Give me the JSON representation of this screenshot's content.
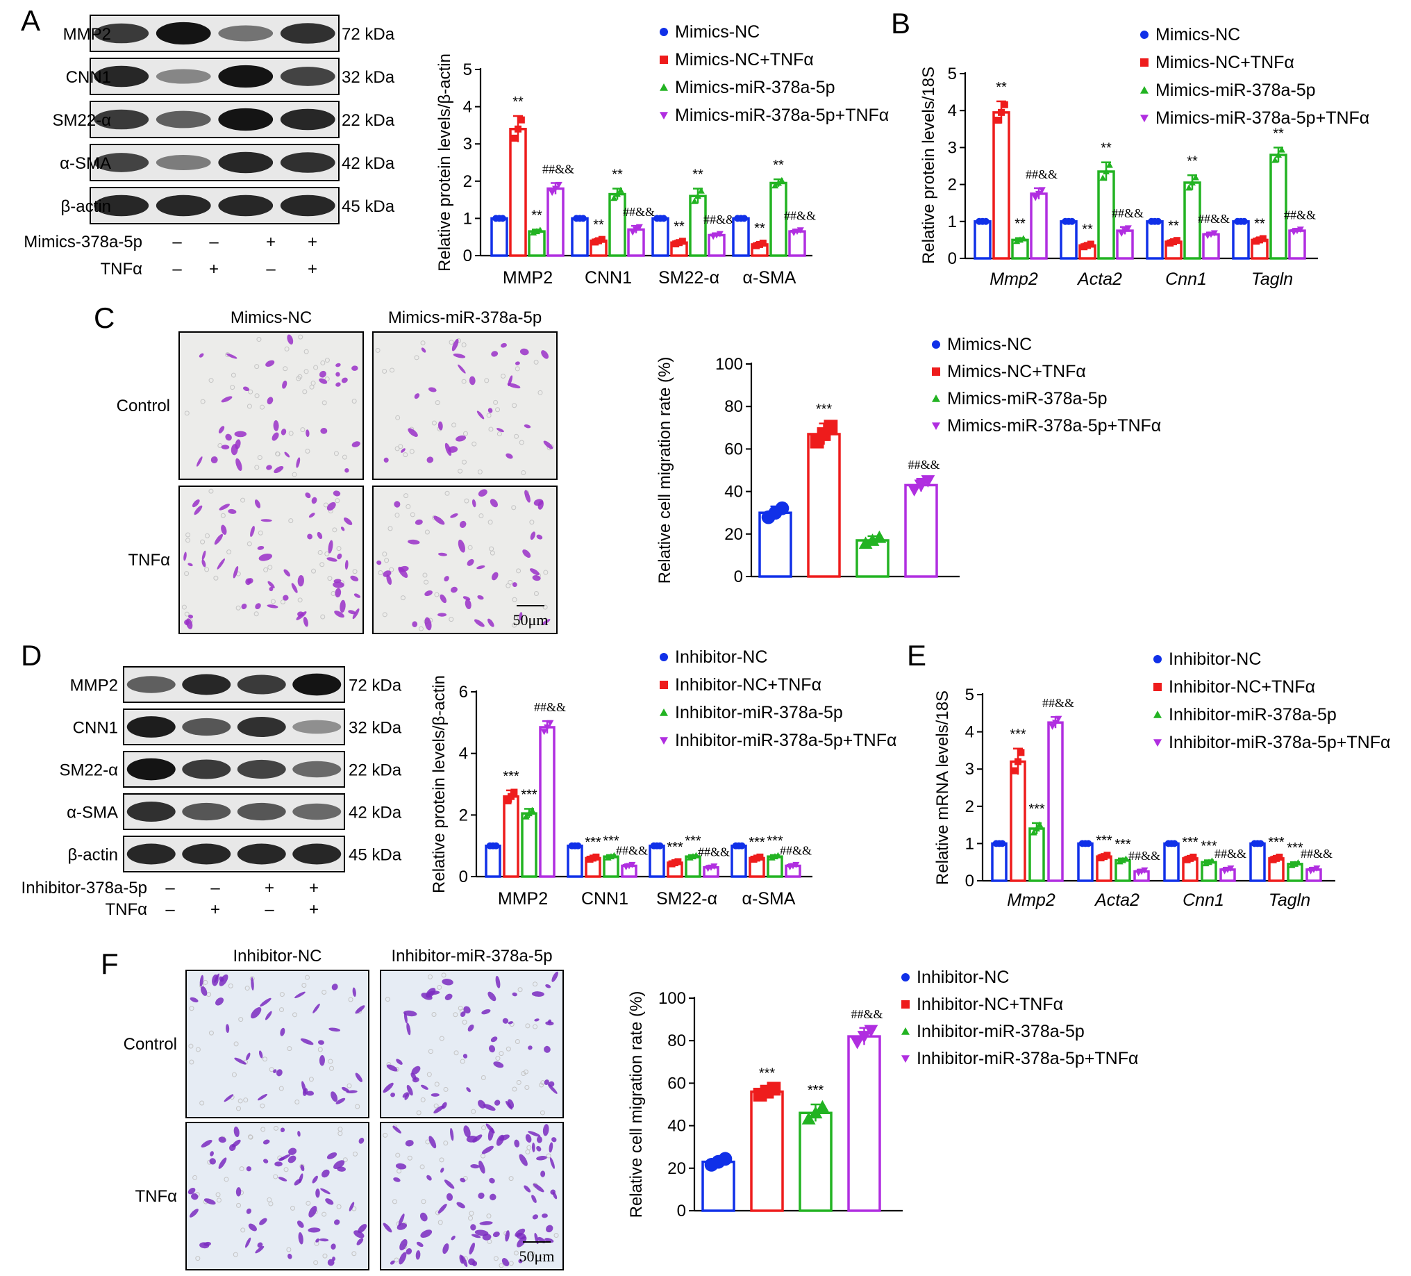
{
  "panels": {
    "A": {
      "letter": "A"
    },
    "B": {
      "letter": "B"
    },
    "C": {
      "letter": "C"
    },
    "D": {
      "letter": "D"
    },
    "E": {
      "letter": "E"
    },
    "F": {
      "letter": "F"
    }
  },
  "colors": {
    "blue": "#1030e8",
    "red": "#ee1c1c",
    "green": "#22b322",
    "purple": "#b02ee0"
  },
  "blots": [
    {
      "id": "A",
      "rows": [
        {
          "protein": "MMP2",
          "kda": "72 kDa",
          "intensities": [
            0.75,
            0.95,
            0.45,
            0.8
          ]
        },
        {
          "protein": "CNN1",
          "kda": "32 kDa",
          "intensities": [
            0.85,
            0.35,
            0.95,
            0.7
          ]
        },
        {
          "protein": "SM22-α",
          "kda": "22 kDa",
          "intensities": [
            0.75,
            0.55,
            0.95,
            0.85
          ]
        },
        {
          "protein": "α-SMA",
          "kda": "42 kDa",
          "intensities": [
            0.7,
            0.4,
            0.85,
            0.8
          ]
        },
        {
          "protein": "β-actin",
          "kda": "45 kDa",
          "intensities": [
            0.85,
            0.85,
            0.85,
            0.85
          ]
        }
      ],
      "condition_rows": [
        {
          "label": "Mimics-378a-5p",
          "signs": [
            "–",
            "–",
            "+",
            "+"
          ]
        },
        {
          "label": "TNFα",
          "signs": [
            "–",
            "+",
            "–",
            "+"
          ]
        }
      ]
    },
    {
      "id": "D",
      "rows": [
        {
          "protein": "MMP2",
          "kda": "72 kDa",
          "intensities": [
            0.55,
            0.85,
            0.75,
            0.95
          ]
        },
        {
          "protein": "CNN1",
          "kda": "32 kDa",
          "intensities": [
            0.9,
            0.6,
            0.8,
            0.3
          ]
        },
        {
          "protein": "SM22-α",
          "kda": "22 kDa",
          "intensities": [
            0.95,
            0.75,
            0.7,
            0.5
          ]
        },
        {
          "protein": "α-SMA",
          "kda": "42 kDa",
          "intensities": [
            0.8,
            0.6,
            0.6,
            0.5
          ]
        },
        {
          "protein": "β-actin",
          "kda": "45 kDa",
          "intensities": [
            0.85,
            0.85,
            0.85,
            0.85
          ]
        }
      ],
      "condition_rows": [
        {
          "label": "Inhibitor-378a-5p",
          "signs": [
            "–",
            "–",
            "+",
            "+"
          ]
        },
        {
          "label": "TNFα",
          "signs": [
            "–",
            "+",
            "–",
            "+"
          ]
        }
      ]
    }
  ],
  "micrographs": [
    {
      "id": "C",
      "col_labels": [
        "Mimics-NC",
        "Mimics-miR-378a-5p"
      ],
      "row_labels": [
        "Control",
        "TNFα"
      ],
      "densities": [
        0.35,
        0.25,
        0.65,
        0.45
      ],
      "scale_bar": "50μm"
    },
    {
      "id": "F",
      "col_labels": [
        "Inhibitor-NC",
        "Inhibitor-miR-378a-5p"
      ],
      "row_labels": [
        "Control",
        "TNFα"
      ],
      "densities": [
        0.4,
        0.6,
        0.7,
        1.0
      ],
      "scale_bar": "50μm"
    }
  ],
  "chart_data": [
    {
      "id": "A-chart",
      "type": "bar",
      "ylabel": "Relative protein levels/β-actin",
      "ylim": [
        0,
        5
      ],
      "yticks": [
        0,
        1,
        2,
        3,
        4,
        5
      ],
      "italic_categories": false,
      "categories": [
        "MMP2",
        "CNN1",
        "SM22-α",
        "α-SMA"
      ],
      "legend": [
        "Mimics-NC",
        "Mimics-NC+TNFα",
        "Mimics-miR-378a-5p",
        "Mimics-miR-378a-5p+TNFα"
      ],
      "series": [
        {
          "name": "Mimics-NC",
          "values": [
            1.0,
            1.0,
            1.0,
            1.0
          ],
          "errors": [
            0,
            0,
            0,
            0
          ],
          "marks": [
            "",
            "",
            "",
            ""
          ]
        },
        {
          "name": "Mimics-NC+TNFα",
          "values": [
            3.4,
            0.4,
            0.35,
            0.3
          ],
          "errors": [
            0.35,
            0.05,
            0.05,
            0.05
          ],
          "marks": [
            "**",
            "**",
            "**",
            "**"
          ]
        },
        {
          "name": "Mimics-miR-378a-5p",
          "values": [
            0.65,
            1.65,
            1.6,
            1.95
          ],
          "errors": [
            0.05,
            0.15,
            0.2,
            0.1
          ],
          "marks": [
            "**",
            "**",
            "**",
            "**"
          ]
        },
        {
          "name": "Mimics-miR-378a-5p+TNFα",
          "values": [
            1.8,
            0.7,
            0.55,
            0.65
          ],
          "errors": [
            0.15,
            0.1,
            0.05,
            0.05
          ],
          "marks": [
            "##&&",
            "##&&",
            "##&&",
            "##&&"
          ]
        }
      ]
    },
    {
      "id": "B-chart",
      "type": "bar",
      "ylabel": "Relative protein levels/18S",
      "ylim": [
        0,
        5
      ],
      "yticks": [
        0,
        1,
        2,
        3,
        4,
        5
      ],
      "italic_categories": true,
      "categories": [
        "Mmp2",
        "Acta2",
        "Cnn1",
        "Tagln"
      ],
      "legend": [
        "Mimics-NC",
        "Mimics-NC+TNFα",
        "Mimics-miR-378a-5p",
        "Mimics-miR-378a-5p+TNFα"
      ],
      "series": [
        {
          "name": "Mimics-NC",
          "values": [
            1.0,
            1.0,
            1.0,
            1.0
          ],
          "errors": [
            0,
            0,
            0,
            0
          ],
          "marks": [
            "",
            "",
            "",
            ""
          ]
        },
        {
          "name": "Mimics-NC+TNFα",
          "values": [
            3.95,
            0.35,
            0.45,
            0.5
          ],
          "errors": [
            0.3,
            0.05,
            0.05,
            0.05
          ],
          "marks": [
            "**",
            "**",
            "**",
            "**"
          ]
        },
        {
          "name": "Mimics-miR-378a-5p",
          "values": [
            0.5,
            2.35,
            2.05,
            2.8
          ],
          "errors": [
            0.05,
            0.25,
            0.2,
            0.2
          ],
          "marks": [
            "**",
            "**",
            "**",
            "**"
          ]
        },
        {
          "name": "Mimics-miR-378a-5p+TNFα",
          "values": [
            1.75,
            0.75,
            0.65,
            0.75
          ],
          "errors": [
            0.15,
            0.1,
            0.05,
            0.05
          ],
          "marks": [
            "##&&",
            "##&&",
            "##&&",
            "##&&"
          ]
        }
      ]
    },
    {
      "id": "C-chart",
      "type": "bar",
      "ylabel": "Relative cell migration rate (%)",
      "ylim": [
        0,
        100
      ],
      "yticks": [
        0,
        20,
        40,
        60,
        80,
        100
      ],
      "italic_categories": false,
      "categories": [
        ""
      ],
      "legend": [
        "Mimics-NC",
        "Mimics-NC+TNFα",
        "Mimics-miR-378a-5p",
        "Mimics-miR-378a-5p+TNFα"
      ],
      "series": [
        {
          "name": "Mimics-NC",
          "values": [
            30
          ],
          "errors": [
            3
          ],
          "marks": [
            ""
          ]
        },
        {
          "name": "Mimics-NC+TNFα",
          "values": [
            67
          ],
          "errors": [
            5
          ],
          "marks": [
            "***"
          ]
        },
        {
          "name": "Mimics-miR-378a-5p",
          "values": [
            17
          ],
          "errors": [
            2
          ],
          "marks": [
            ""
          ]
        },
        {
          "name": "Mimics-miR-378a-5p+TNFα",
          "values": [
            43
          ],
          "errors": [
            3
          ],
          "marks": [
            "##&&"
          ]
        }
      ]
    },
    {
      "id": "D-chart",
      "type": "bar",
      "ylabel": "Relative protein levels/β-actin",
      "ylim": [
        0,
        6
      ],
      "yticks": [
        0,
        2,
        4,
        6
      ],
      "italic_categories": false,
      "categories": [
        "MMP2",
        "CNN1",
        "SM22-α",
        "α-SMA"
      ],
      "legend": [
        "Inhibitor-NC",
        "Inhibitor-NC+TNFα",
        "Inhibitor-miR-378a-5p",
        "Inhibitor-miR-378a-5p+TNFα"
      ],
      "series": [
        {
          "name": "Inhibitor-NC",
          "values": [
            1.0,
            1.0,
            1.0,
            1.0
          ],
          "errors": [
            0,
            0,
            0,
            0
          ],
          "marks": [
            "",
            "",
            "",
            ""
          ]
        },
        {
          "name": "Inhibitor-NC+TNFα",
          "values": [
            2.6,
            0.6,
            0.45,
            0.6
          ],
          "errors": [
            0.2,
            0.05,
            0.05,
            0.05
          ],
          "marks": [
            "***",
            "***",
            "***",
            "***"
          ]
        },
        {
          "name": "Inhibitor-miR-378a-5p",
          "values": [
            2.05,
            0.65,
            0.65,
            0.65
          ],
          "errors": [
            0.15,
            0.05,
            0.05,
            0.05
          ],
          "marks": [
            "***",
            "***",
            "***",
            "***"
          ]
        },
        {
          "name": "Inhibitor-miR-378a-5p+TNFα",
          "values": [
            4.85,
            0.35,
            0.3,
            0.35
          ],
          "errors": [
            0.2,
            0.05,
            0.05,
            0.05
          ],
          "marks": [
            "##&&",
            "##&&",
            "##&&",
            "##&&"
          ]
        }
      ]
    },
    {
      "id": "E-chart",
      "type": "bar",
      "ylabel": "Relative mRNA levels/18S",
      "ylim": [
        0,
        5
      ],
      "yticks": [
        0,
        1,
        2,
        3,
        4,
        5
      ],
      "italic_categories": true,
      "categories": [
        "Mmp2",
        "Acta2",
        "Cnn1",
        "Tagln"
      ],
      "legend": [
        "Inhibitor-NC",
        "Inhibitor-NC+TNFα",
        "Inhibitor-miR-378a-5p",
        "Inhibitor-miR-378a-5p+TNFα"
      ],
      "series": [
        {
          "name": "Inhibitor-NC",
          "values": [
            1.0,
            1.0,
            1.0,
            1.0
          ],
          "errors": [
            0,
            0,
            0,
            0
          ],
          "marks": [
            "",
            "",
            "",
            ""
          ]
        },
        {
          "name": "Inhibitor-NC+TNFα",
          "values": [
            3.2,
            0.65,
            0.6,
            0.6
          ],
          "errors": [
            0.35,
            0.05,
            0.05,
            0.05
          ],
          "marks": [
            "***",
            "***",
            "***",
            "***"
          ]
        },
        {
          "name": "Inhibitor-miR-378a-5p",
          "values": [
            1.4,
            0.55,
            0.5,
            0.45
          ],
          "errors": [
            0.15,
            0.05,
            0.05,
            0.05
          ],
          "marks": [
            "***",
            "***",
            "***",
            "***"
          ]
        },
        {
          "name": "Inhibitor-miR-378a-5p+TNFα",
          "values": [
            4.25,
            0.25,
            0.3,
            0.3
          ],
          "errors": [
            0.15,
            0.05,
            0.05,
            0.05
          ],
          "marks": [
            "##&&",
            "##&&",
            "##&&",
            "##&&"
          ]
        }
      ]
    },
    {
      "id": "F-chart",
      "type": "bar",
      "ylabel": "Relative cell migration rate (%)",
      "ylim": [
        0,
        100
      ],
      "yticks": [
        0,
        20,
        40,
        60,
        80,
        100
      ],
      "italic_categories": false,
      "categories": [
        ""
      ],
      "legend": [
        "Inhibitor-NC",
        "Inhibitor-NC+TNFα",
        "Inhibitor-miR-378a-5p",
        "Inhibitor-miR-378a-5p+TNFα"
      ],
      "series": [
        {
          "name": "Inhibitor-NC",
          "values": [
            23
          ],
          "errors": [
            2
          ],
          "marks": [
            ""
          ]
        },
        {
          "name": "Inhibitor-NC+TNFα",
          "values": [
            56
          ],
          "errors": [
            2
          ],
          "marks": [
            "***"
          ]
        },
        {
          "name": "Inhibitor-miR-378a-5p",
          "values": [
            46
          ],
          "errors": [
            4
          ],
          "marks": [
            "***"
          ]
        },
        {
          "name": "Inhibitor-miR-378a-5p+TNFα",
          "values": [
            82
          ],
          "errors": [
            4
          ],
          "marks": [
            "##&&"
          ]
        }
      ]
    }
  ]
}
